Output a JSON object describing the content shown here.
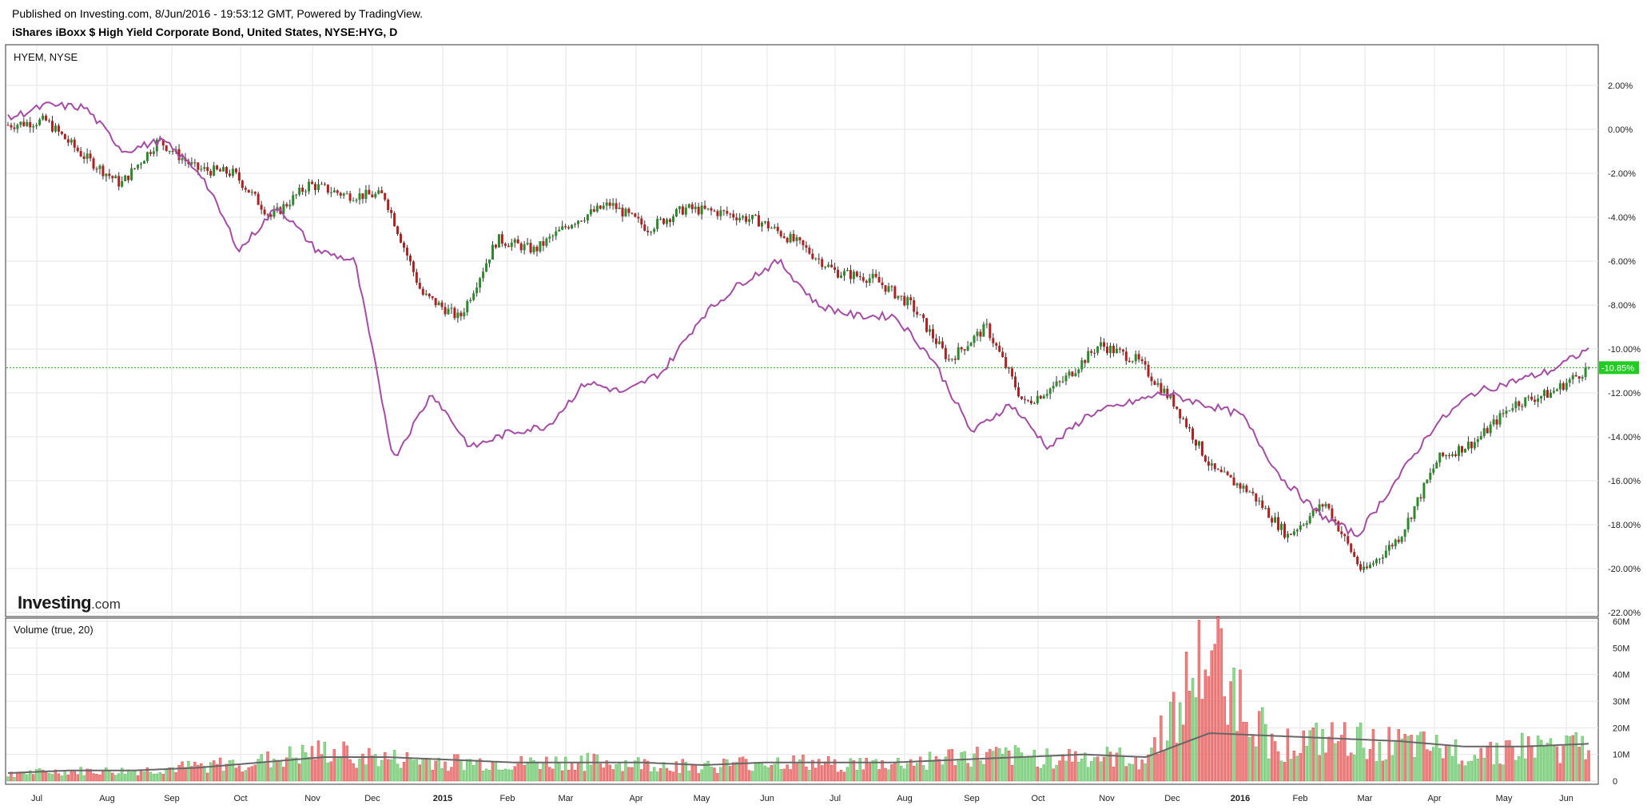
{
  "header": {
    "published": "Published on Investing.com, 8/Jun/2016 - 19:53:12 GMT, Powered by TradingView.",
    "instrument": "iShares iBoxx $ High Yield Corporate Bond, United States, NYSE:HYG, D"
  },
  "price_pane": {
    "label": "HYEM, NYSE"
  },
  "volume_pane": {
    "label": "Volume (true, 20)"
  },
  "logo": {
    "brand": "Investing",
    "suffix": ".com"
  },
  "colors": {
    "up": "#2b8a2b",
    "down": "#b02020",
    "compare": "#a64ca6",
    "vol_up": "#8fd98f",
    "vol_down": "#f08080",
    "vol_ma": "#666666",
    "last_value_bg": "#22cc22",
    "grid": "#e6e6e6"
  },
  "chart_data": [
    {
      "type": "candlestick",
      "title": "iShares iBoxx $ High Yield Corporate Bond, United States, NYSE:HYG, D",
      "compare_series": "HYEM, NYSE",
      "y_unit": "percent change",
      "ylim": [
        -22,
        3.5
      ],
      "y_ticks": [
        "2.00%",
        "0.00%",
        "-2.00%",
        "-4.00%",
        "-6.00%",
        "-8.00%",
        "-10.00%",
        "-12.00%",
        "-14.00%",
        "-16.00%",
        "-18.00%",
        "-20.00%",
        "-22.00%"
      ],
      "last_value_label": "-10.85%",
      "last_value": -10.85,
      "x_ticks": [
        "Jul",
        "Aug",
        "Sep",
        "Oct",
        "Nov",
        "Dec",
        "2015",
        "Feb",
        "Mar",
        "Apr",
        "May",
        "Jun",
        "Jul",
        "Aug",
        "Sep",
        "Oct",
        "Nov",
        "Dec",
        "2016",
        "Feb",
        "Mar",
        "Apr",
        "May",
        "Jun"
      ],
      "series": [
        {
          "name": "HYG",
          "x": [
            "Jun",
            "Jul",
            "Aug",
            "Aug",
            "Sep",
            "Sep",
            "Oct",
            "Oct",
            "Nov",
            "Nov",
            "Dec",
            "Dec",
            "Dec",
            "2015",
            "Feb",
            "Feb",
            "Mar",
            "Apr",
            "Apr",
            "May",
            "Jun",
            "Jun",
            "Jul",
            "Jul",
            "Aug",
            "Sep",
            "Sep",
            "Oct",
            "Oct",
            "Nov",
            "Nov",
            "Dec",
            "Dec",
            "2016",
            "Feb",
            "Feb",
            "Feb",
            "Mar",
            "Mar",
            "Apr",
            "May",
            "May",
            "Jun"
          ],
          "values": [
            0.2,
            0.4,
            -1.2,
            -2.5,
            -0.5,
            -1.8,
            -2.0,
            -4.0,
            -2.5,
            -3.0,
            -3.0,
            -7.5,
            -8.6,
            -5.0,
            -5.5,
            -4.2,
            -3.4,
            -4.5,
            -3.6,
            -3.8,
            -4.2,
            -5.2,
            -6.5,
            -6.8,
            -8.0,
            -10.5,
            -9.0,
            -12.5,
            -11.5,
            -9.8,
            -10.5,
            -12.5,
            -15.5,
            -16.5,
            -18.5,
            -17.0,
            -20.2,
            -18.5,
            -15.0,
            -14.2,
            -12.5,
            -12.0,
            -10.85
          ]
        },
        {
          "name": "HYEM, NYSE",
          "x": [
            "Jun",
            "Jul",
            "Jul",
            "Aug",
            "Sep",
            "Oct",
            "Oct",
            "Nov",
            "Nov",
            "Dec",
            "Dec",
            "Dec",
            "2015",
            "Feb",
            "Feb",
            "Mar",
            "Mar",
            "Apr",
            "Apr",
            "May",
            "Jun",
            "Jun",
            "Jul",
            "Aug",
            "Aug",
            "Sep",
            "Sep",
            "Oct",
            "Oct",
            "Nov",
            "Nov",
            "Dec",
            "Dec",
            "2016",
            "Feb",
            "Feb",
            "Mar",
            "Apr",
            "Apr",
            "May",
            "May",
            "Jun"
          ],
          "values": [
            0.5,
            1.1,
            1.0,
            -1.0,
            -0.5,
            -2.0,
            -5.5,
            -3.5,
            -5.5,
            -6.0,
            -15.0,
            -12.0,
            -14.5,
            -13.8,
            -13.5,
            -11.5,
            -12.0,
            -11.0,
            -8.5,
            -7.0,
            -6.0,
            -8.0,
            -8.5,
            -8.5,
            -10.5,
            -13.8,
            -12.5,
            -14.5,
            -13.0,
            -12.5,
            -12.0,
            -12.5,
            -13.0,
            -15.8,
            -17.5,
            -18.5,
            -16.0,
            -13.5,
            -12.0,
            -11.5,
            -11.0,
            -10.0
          ]
        }
      ]
    },
    {
      "type": "bar",
      "title": "Volume (true, 20)",
      "ylim": [
        0,
        60
      ],
      "y_unit": "M",
      "y_ticks": [
        "60M",
        "50M",
        "40M",
        "30M",
        "20M",
        "10M",
        "0"
      ],
      "x": [
        "Jul",
        "Aug",
        "Sep",
        "Oct",
        "Nov",
        "Dec",
        "Dec",
        "2015",
        "Feb",
        "Mar",
        "Apr",
        "May",
        "Jun",
        "Jul",
        "Aug",
        "Sep",
        "Oct",
        "Nov",
        "Dec",
        "Dec",
        "2016",
        "Feb",
        "Mar",
        "Apr",
        "May",
        "Jun"
      ],
      "values": [
        3,
        4,
        4,
        6,
        8,
        12,
        9,
        8,
        7,
        8,
        7,
        6,
        8,
        7,
        7,
        10,
        10,
        10,
        9,
        54,
        15,
        17,
        15,
        12,
        14,
        14
      ],
      "series": [
        {
          "name": "Volume MA (20)",
          "values": [
            3,
            4,
            4,
            5,
            7,
            9,
            9,
            8,
            7,
            7,
            7,
            6,
            7,
            7,
            7,
            8,
            9,
            10,
            9,
            18,
            17,
            16,
            15,
            13,
            13,
            14
          ]
        }
      ]
    }
  ]
}
